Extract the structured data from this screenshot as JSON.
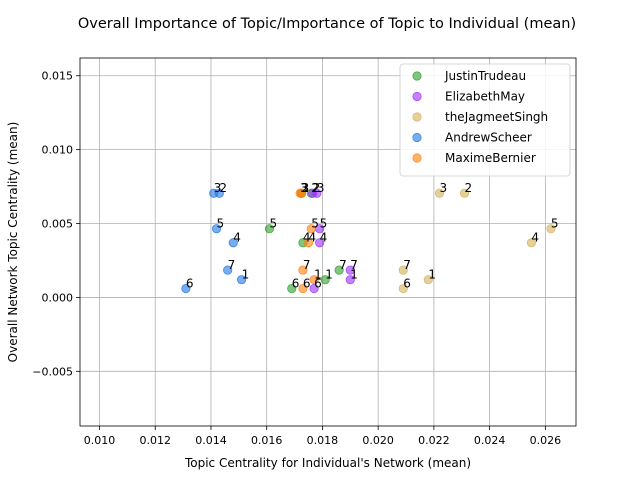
{
  "chart_data": {
    "type": "scatter",
    "title": "Overall Importance of Topic/Importance of Topic to Individual (mean)",
    "xlabel": "Topic Centrality for Individual's Network (mean)",
    "ylabel": "Overall Network Topic Centrality (mean)",
    "xlim": [
      0.0093,
      0.0271
    ],
    "ylim": [
      -0.0087,
      0.0162
    ],
    "xticks": [
      "0.010",
      "0.012",
      "0.014",
      "0.016",
      "0.018",
      "0.020",
      "0.022",
      "0.024",
      "0.026"
    ],
    "xtick_values": [
      0.01,
      0.012,
      0.014,
      0.016,
      0.018,
      0.02,
      0.022,
      0.024,
      0.026
    ],
    "yticks": [
      "−0.005",
      "0.000",
      "0.005",
      "0.010",
      "0.015"
    ],
    "ytick_values": [
      -0.005,
      0.0,
      0.005,
      0.01,
      0.015
    ],
    "grid": true,
    "legend_position": "top-right",
    "series": [
      {
        "name": "JustinTrudeau",
        "color": "#2ca02c",
        "points": [
          {
            "label": "3",
            "x": 0.01725,
            "y": 0.00705
          },
          {
            "label": "2",
            "x": 0.0176,
            "y": 0.00705
          },
          {
            "label": "5",
            "x": 0.0161,
            "y": 0.00465
          },
          {
            "label": "4",
            "x": 0.0173,
            "y": 0.0037
          },
          {
            "label": "7",
            "x": 0.0186,
            "y": 0.00185
          },
          {
            "label": "1",
            "x": 0.0181,
            "y": 0.0012
          },
          {
            "label": "6",
            "x": 0.0169,
            "y": 0.0006
          }
        ]
      },
      {
        "name": "ElizabethMay",
        "color": "#9b30ff",
        "points": [
          {
            "label": "3",
            "x": 0.0178,
            "y": 0.00705
          },
          {
            "label": "2",
            "x": 0.01765,
            "y": 0.00705
          },
          {
            "label": "5",
            "x": 0.0179,
            "y": 0.00465
          },
          {
            "label": "4",
            "x": 0.0179,
            "y": 0.0037
          },
          {
            "label": "7",
            "x": 0.019,
            "y": 0.00185
          },
          {
            "label": "1",
            "x": 0.019,
            "y": 0.0012
          },
          {
            "label": "6",
            "x": 0.0177,
            "y": 0.0006
          }
        ]
      },
      {
        "name": "theJagmeetSingh",
        "color": "#d4b15a",
        "points": [
          {
            "label": "3",
            "x": 0.0222,
            "y": 0.00705
          },
          {
            "label": "2",
            "x": 0.0231,
            "y": 0.00705
          },
          {
            "label": "5",
            "x": 0.0262,
            "y": 0.00465
          },
          {
            "label": "4",
            "x": 0.0255,
            "y": 0.0037
          },
          {
            "label": "7",
            "x": 0.0209,
            "y": 0.00185
          },
          {
            "label": "1",
            "x": 0.0218,
            "y": 0.0012
          },
          {
            "label": "6",
            "x": 0.0209,
            "y": 0.0006
          }
        ]
      },
      {
        "name": "AndrewScheer",
        "color": "#1f77e4",
        "points": [
          {
            "label": "3",
            "x": 0.0141,
            "y": 0.00705
          },
          {
            "label": "2",
            "x": 0.0143,
            "y": 0.00705
          },
          {
            "label": "5",
            "x": 0.0142,
            "y": 0.00465
          },
          {
            "label": "4",
            "x": 0.0148,
            "y": 0.0037
          },
          {
            "label": "7",
            "x": 0.0146,
            "y": 0.00185
          },
          {
            "label": "1",
            "x": 0.0151,
            "y": 0.0012
          },
          {
            "label": "6",
            "x": 0.0131,
            "y": 0.0006
          }
        ]
      },
      {
        "name": "MaximeBernier",
        "color": "#ff7f0e",
        "points": [
          {
            "label": "3",
            "x": 0.0172,
            "y": 0.00705
          },
          {
            "label": "2",
            "x": 0.01725,
            "y": 0.00705
          },
          {
            "label": "5",
            "x": 0.0176,
            "y": 0.00465
          },
          {
            "label": "4",
            "x": 0.0175,
            "y": 0.0037
          },
          {
            "label": "7",
            "x": 0.0173,
            "y": 0.00185
          },
          {
            "label": "1",
            "x": 0.0177,
            "y": 0.0012
          },
          {
            "label": "6",
            "x": 0.0173,
            "y": 0.0006
          }
        ]
      }
    ]
  }
}
